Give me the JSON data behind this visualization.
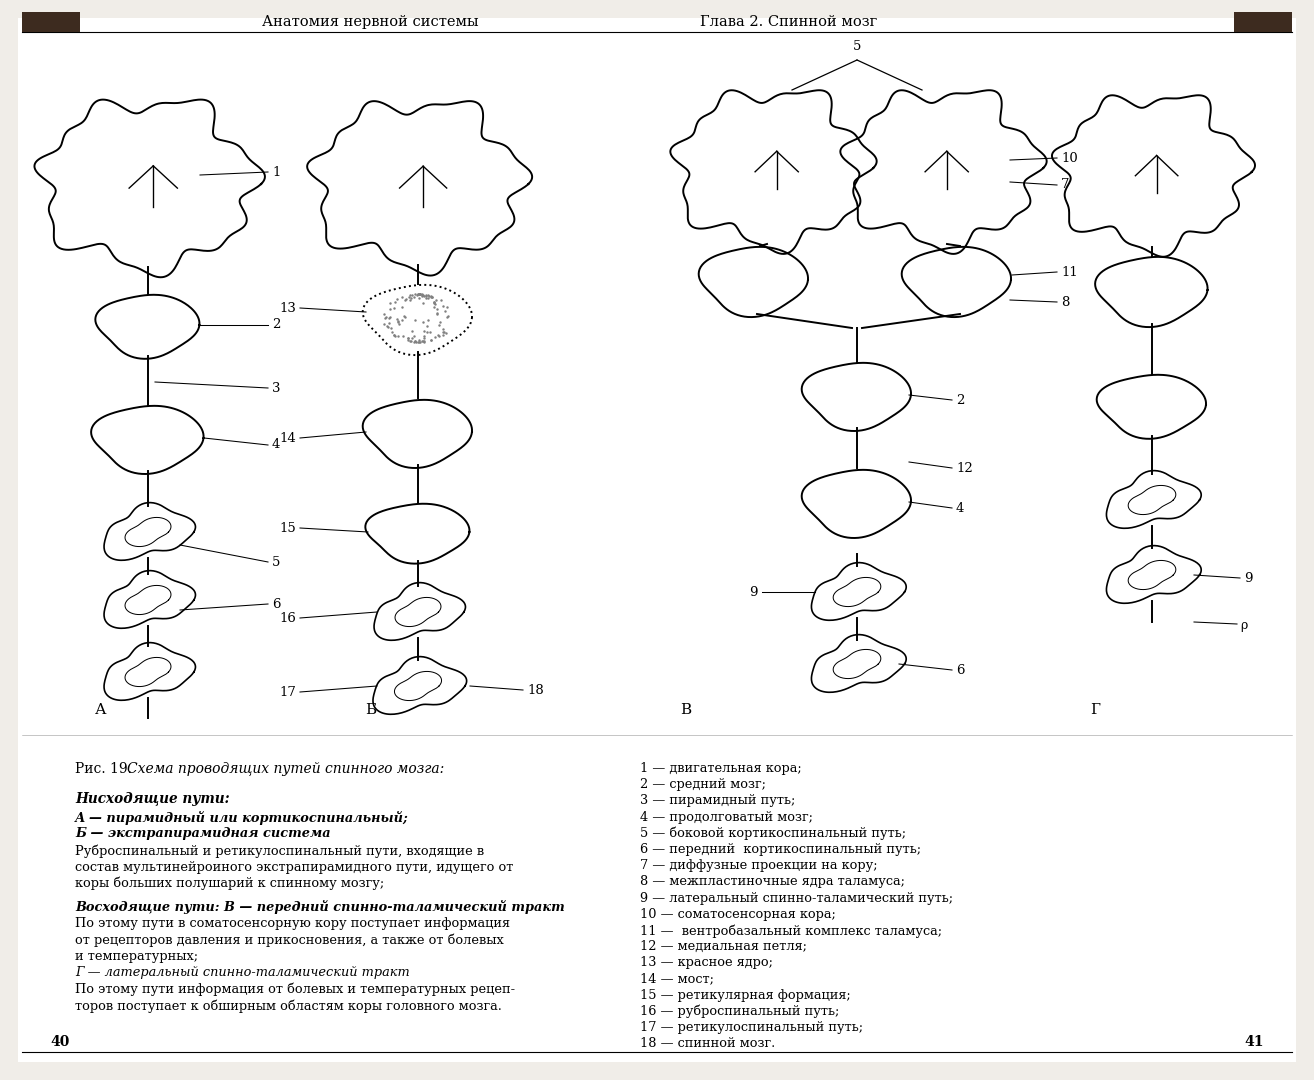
{
  "background_color": "#f0ede8",
  "page_color": "#ffffff",
  "header_left": "Анатомия нервной системы",
  "header_right": "Глава 2. Спинной мозг",
  "page_num_left": "40",
  "page_num_right": "41",
  "figure_caption_normal": "Рис. 19. ",
  "figure_caption_italic": "Схема проводящих путей спинного мозга:",
  "left_text_title": "Нисходящие пути:",
  "right_text": [
    "1 — двигательная кора;",
    "2 — средний мозг;",
    "3 — пирамидный путь;",
    "4 — продолговатый мозг;",
    "5 — боковой кортикоспинальный путь;",
    "6 — передний  кортикоспинальный путь;",
    "7 — диффузные проекции на кору;",
    "8 — межпластиночные ядра таламуса;",
    "9 — латеральный спинно-таламический путь;",
    "10 — соматосенсорная кора;",
    "11 —  вентробазальный комплекс таламуса;",
    "12 — медиальная петля;",
    "13 — красное ядро;",
    "14 — мост;",
    "15 — ретикулярная формация;",
    "16 — руброспинальный путь;",
    "17 — ретикулоспинальный путь;",
    "18 — спинной мозг."
  ]
}
